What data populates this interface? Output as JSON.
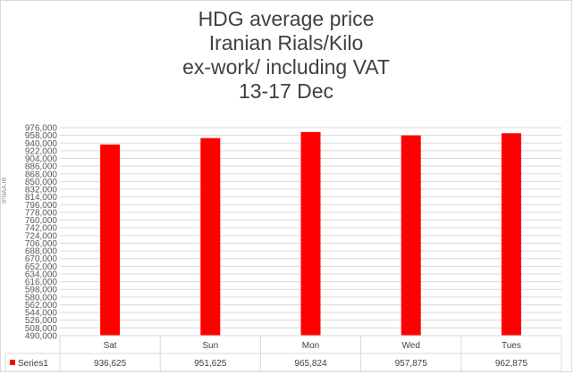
{
  "chart_data": {
    "type": "bar",
    "title_lines": [
      "HDG average price",
      "Iranian Rials/Kilo",
      "ex-work/ including VAT",
      "13-17 Dec"
    ],
    "watermark": "IFNAA.IR",
    "categories": [
      "Sat",
      "Sun",
      "Mon",
      "Wed",
      "Tues"
    ],
    "series": [
      {
        "name": "Series1",
        "values": [
          936625,
          951625,
          965824,
          957875,
          962875
        ],
        "color": "#ff0000"
      }
    ],
    "value_labels": [
      "936,625",
      "951,625",
      "965,824",
      "957,875",
      "962,875"
    ],
    "ylim": [
      490000,
      976000
    ],
    "ytick_step": 18000,
    "ytick_labels": [
      "490,000",
      "508,000",
      "526,000",
      "544,000",
      "562,000",
      "580,000",
      "598,000",
      "616,000",
      "634,000",
      "652,000",
      "670,000",
      "688,000",
      "706,000",
      "724,000",
      "742,000",
      "760,000",
      "778,000",
      "796,000",
      "814,000",
      "832,000",
      "850,000",
      "868,000",
      "886,000",
      "904,000",
      "922,000",
      "940,000",
      "958,000",
      "976,000"
    ],
    "data_table": true,
    "grid": true,
    "legend": "data-table"
  }
}
